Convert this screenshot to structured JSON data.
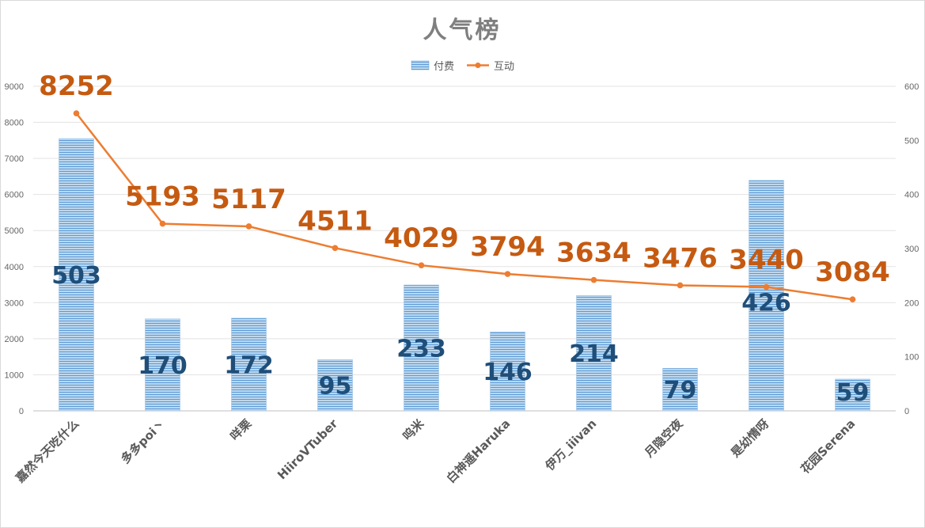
{
  "chart_data": {
    "type": "bar",
    "title": "人气榜",
    "categories": [
      "嘉然今天吃什么",
      "多多poi丶",
      "咩栗",
      "HiiroVTuber",
      "呜米",
      "白神遥Haruka",
      "伊万_iiivan",
      "月隐空夜",
      "是幼情呀",
      "花园Serena"
    ],
    "series": [
      {
        "name": "付费",
        "type": "bar",
        "axis": "left",
        "values": [
          7550,
          2550,
          2570,
          1420,
          3490,
          2190,
          3200,
          1180,
          6390,
          880
        ],
        "labels": [
          "503",
          "170",
          "172",
          "95",
          "233",
          "146",
          "214",
          "79",
          "426",
          "59"
        ],
        "color": "#5b9bd5"
      },
      {
        "name": "互动",
        "type": "line",
        "axis": "right",
        "values": [
          550,
          346,
          341,
          301,
          269,
          253,
          242,
          232,
          229,
          206
        ],
        "labels": [
          "8252",
          "5193",
          "5117",
          "4511",
          "4029",
          "3794",
          "3634",
          "3476",
          "3440",
          "3084"
        ],
        "color": "#ed7d31"
      }
    ],
    "ylim_left": [
      0,
      9000
    ],
    "ylim_right": [
      0,
      600
    ],
    "yticks_left": [
      "0",
      "1000",
      "2000",
      "3000",
      "4000",
      "5000",
      "6000",
      "7000",
      "8000",
      "9000"
    ],
    "yticks_right": [
      "0",
      "100",
      "200",
      "300",
      "400",
      "500",
      "600"
    ],
    "grid": true,
    "legend": "top-center"
  }
}
